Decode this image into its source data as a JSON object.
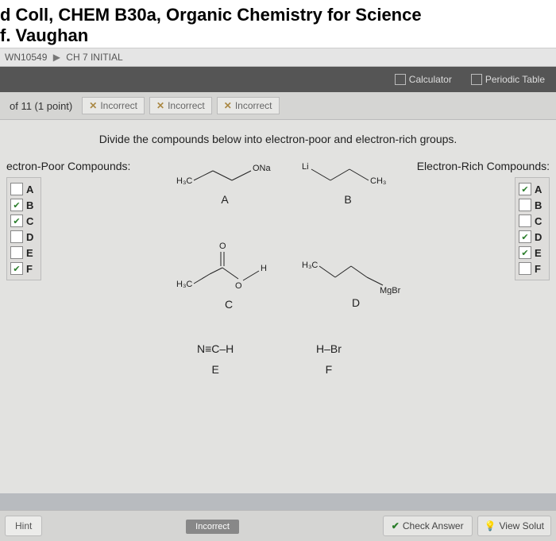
{
  "header": {
    "title_line1": "d Coll, CHEM B30a, Organic Chemistry for Science",
    "title_line2": "f. Vaughan"
  },
  "breadcrumb": {
    "assignment": "WN10549",
    "section": "CH 7 INITIAL"
  },
  "toolbar": {
    "calculator": "Calculator",
    "periodic": "Periodic Table"
  },
  "question": {
    "counter": "of 11 (1 point)",
    "attempts": [
      "Incorrect",
      "Incorrect",
      "Incorrect"
    ]
  },
  "prompt": "Divide the compounds below into electron-poor and electron-rich groups.",
  "left": {
    "title": "ectron-Poor Compounds:",
    "items": [
      {
        "label": "A",
        "checked": false
      },
      {
        "label": "B",
        "checked": true
      },
      {
        "label": "C",
        "checked": true
      },
      {
        "label": "D",
        "checked": false
      },
      {
        "label": "E",
        "checked": false
      },
      {
        "label": "F",
        "checked": true
      }
    ]
  },
  "right": {
    "title": "Electron-Rich Compounds:",
    "items": [
      {
        "label": "A",
        "checked": true
      },
      {
        "label": "B",
        "checked": false
      },
      {
        "label": "C",
        "checked": false
      },
      {
        "label": "D",
        "checked": true
      },
      {
        "label": "E",
        "checked": true
      },
      {
        "label": "F",
        "checked": false
      }
    ]
  },
  "compounds": {
    "a_label": "A",
    "a_left": "H₃C",
    "a_right": "ONa",
    "b_label": "B",
    "b_left": "Li",
    "b_right": "CH₃",
    "c_label": "C",
    "c_left": "H₃C",
    "c_o": "O",
    "c_h": "H",
    "d_label": "D",
    "d_left": "H₃C",
    "d_right": "MgBr",
    "e_label": "E",
    "e_formula": "N≡C–H",
    "f_label": "F",
    "f_formula": "H–Br"
  },
  "footer": {
    "hint": "Hint",
    "status": "Incorrect",
    "check": "Check Answer",
    "view": "View Solut"
  },
  "colors": {
    "header_bg": "#ffffff",
    "content_bg": "#e2e2e0",
    "bar_bg": "#d5d5d3",
    "toolbar_bg": "#555555",
    "check_green": "#2a7d2a",
    "x_brown": "#aa8844"
  }
}
